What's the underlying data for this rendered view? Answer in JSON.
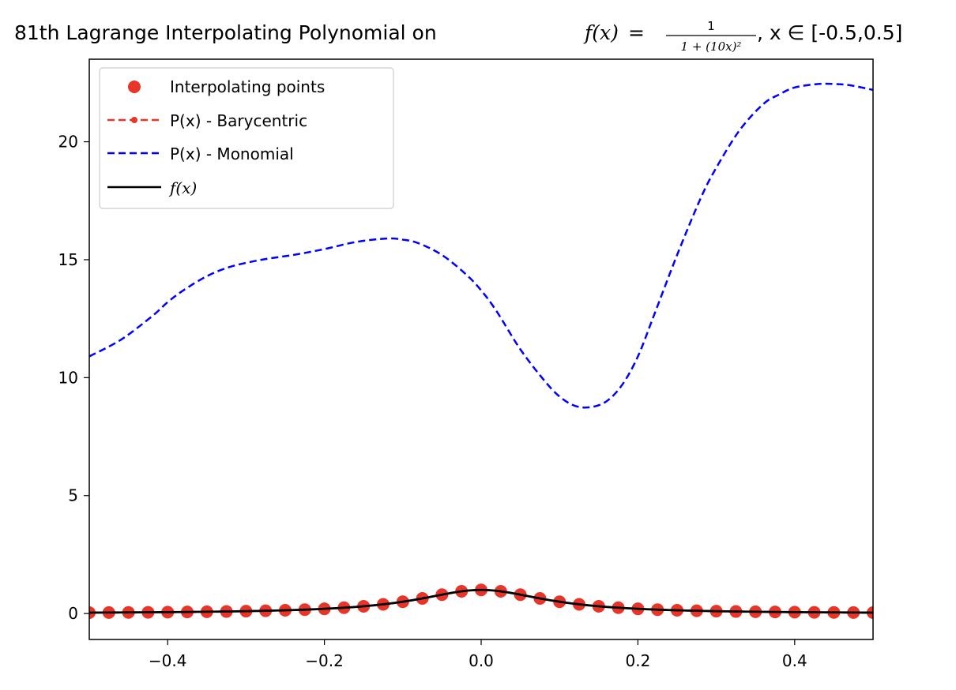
{
  "chart_data": {
    "type": "line",
    "title": {
      "prefix": "81th Lagrange Interpolating Polynomial on ",
      "func_lhs": "f(x)",
      "equals": " = ",
      "frac_num": "1",
      "frac_den": "1 + (10x)²",
      "suffix": ", x ∈ [-0.5,0.5]"
    },
    "xlabel": "",
    "ylabel": "",
    "xlim": [
      -0.5,
      0.5
    ],
    "ylim": [
      -1.1,
      23.5
    ],
    "xticks": [
      -0.4,
      -0.2,
      0.0,
      0.2,
      0.4
    ],
    "xtick_labels": [
      "−0.4",
      "−0.2",
      "0.0",
      "0.2",
      "0.4"
    ],
    "yticks": [
      0,
      5,
      10,
      15,
      20
    ],
    "ytick_labels": [
      "0",
      "5",
      "10",
      "15",
      "20"
    ],
    "grid": false,
    "legend_position": "top-left",
    "legend": [
      {
        "label": "Interpolating points",
        "style": "marker",
        "color": "#e8352a"
      },
      {
        "label": "P(x) - Barycentric",
        "style": "dashed-marker",
        "color": "#e8352a"
      },
      {
        "label": "P(x) - Monomial",
        "style": "dashed",
        "color": "#0000ff"
      },
      {
        "label": "f(x)",
        "style": "solid",
        "color": "#000000"
      }
    ],
    "series": [
      {
        "name": "P(x) - Monomial",
        "color": "#0000ff",
        "style": "dashed",
        "x": [
          -0.5,
          -0.46,
          -0.42,
          -0.4,
          -0.38,
          -0.35,
          -0.32,
          -0.28,
          -0.24,
          -0.2,
          -0.16,
          -0.12,
          -0.1,
          -0.08,
          -0.05,
          -0.02,
          0.0,
          0.02,
          0.05,
          0.08,
          0.1,
          0.12,
          0.14,
          0.16,
          0.18,
          0.2,
          0.22,
          0.25,
          0.28,
          0.3,
          0.33,
          0.36,
          0.38,
          0.4,
          0.43,
          0.45,
          0.47,
          0.5
        ],
        "y": [
          10.9,
          11.6,
          12.6,
          13.2,
          13.7,
          14.3,
          14.7,
          15.0,
          15.2,
          15.45,
          15.75,
          15.9,
          15.85,
          15.7,
          15.2,
          14.4,
          13.7,
          12.8,
          11.2,
          9.9,
          9.2,
          8.8,
          8.75,
          9.0,
          9.7,
          10.9,
          12.6,
          15.2,
          17.6,
          18.9,
          20.5,
          21.6,
          22.0,
          22.3,
          22.45,
          22.45,
          22.4,
          22.2
        ]
      },
      {
        "name": "P(x) - Barycentric",
        "color": "#e8352a",
        "style": "dashed-marker",
        "formula": "1/(1+(10x)^2)",
        "n_points": 41
      },
      {
        "name": "f(x)",
        "color": "#000000",
        "style": "solid",
        "formula": "1/(1+(10x)^2)"
      },
      {
        "name": "Interpolating points",
        "color": "#e8352a",
        "style": "marker",
        "formula": "1/(1+(10x)^2)",
        "n_points": 41
      }
    ]
  }
}
